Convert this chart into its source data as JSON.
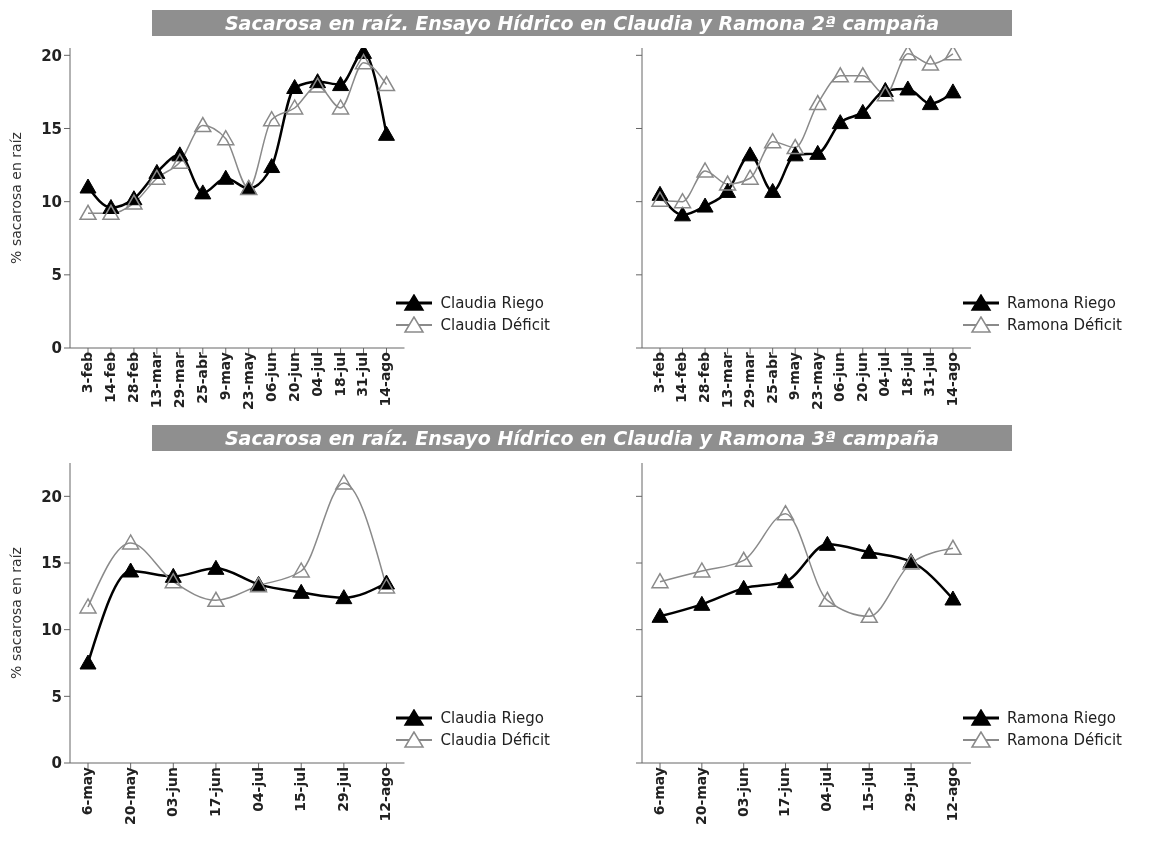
{
  "chart_data": [
    {
      "type": "line",
      "title": "Sacarosa en raíz. Ensayo Hídrico en Claudia y Ramona 2ª campaña",
      "ylabel": "% sacarosa en raíz",
      "categories": [
        "3-feb",
        "14-feb",
        "28-feb",
        "13-mar",
        "29-mar",
        "25-abr",
        "9-may",
        "23-may",
        "06-jun",
        "20-jun",
        "04-jul",
        "18-jul",
        "31-jul",
        "14-ago"
      ],
      "ylim": [
        0,
        20.5
      ],
      "yticks": [
        0,
        5,
        10,
        15,
        20
      ],
      "marker": "triangle",
      "legend": "bottom right",
      "grid": false,
      "series": [
        {
          "name": "Claudia Riego",
          "color": "#000000",
          "values": [
            11.0,
            9.6,
            10.2,
            12.0,
            13.2,
            10.6,
            11.6,
            10.9,
            12.4,
            17.8,
            18.2,
            18.0,
            20.2,
            14.6
          ]
        },
        {
          "name": "Claudia Déficit",
          "color": "#8a8a8a",
          "values": [
            9.2,
            9.2,
            9.9,
            11.6,
            12.7,
            15.2,
            14.3,
            10.9,
            15.6,
            16.4,
            17.9,
            16.4,
            19.5,
            18.0
          ]
        }
      ]
    },
    {
      "type": "line",
      "categories": [
        "3-feb",
        "14-feb",
        "28-feb",
        "13-mar",
        "29-mar",
        "25-abr",
        "9-may",
        "23-may",
        "06-jun",
        "20-jun",
        "04-jul",
        "18-jul",
        "31-jul",
        "14-ago"
      ],
      "ylim": [
        0,
        20.5
      ],
      "yticks": [
        0,
        5,
        10,
        15,
        20
      ],
      "tick_labels": "x",
      "marker": "triangle",
      "legend": "bottom right",
      "grid": false,
      "series": [
        {
          "name": "Ramona Riego",
          "color": "#000000",
          "values": [
            10.5,
            9.1,
            9.7,
            10.7,
            13.2,
            10.7,
            13.2,
            13.3,
            15.4,
            16.1,
            17.6,
            17.7,
            16.7,
            17.5
          ]
        },
        {
          "name": "Ramona Déficit",
          "color": "#8a8a8a",
          "values": [
            10.1,
            10.0,
            12.1,
            11.2,
            11.6,
            14.1,
            13.7,
            16.7,
            18.6,
            18.6,
            17.3,
            20.1,
            19.4,
            20.1
          ]
        }
      ]
    },
    {
      "type": "line",
      "title": "Sacarosa en raíz. Ensayo Hídrico en Claudia y Ramona 3ª campaña",
      "ylabel": "% sacarosa en raíz",
      "categories": [
        "6-may",
        "20-may",
        "03-jun",
        "17-jun",
        "04-jul",
        "15-jul",
        "29-jul",
        "12-ago"
      ],
      "ylim": [
        0,
        22.5
      ],
      "yticks": [
        0,
        5,
        10,
        15,
        20
      ],
      "marker": "triangle",
      "legend": "bottom right",
      "grid": false,
      "series": [
        {
          "name": "Claudia Riego",
          "color": "#000000",
          "values": [
            7.5,
            14.4,
            14.0,
            14.6,
            13.4,
            12.8,
            12.4,
            13.5
          ]
        },
        {
          "name": "Claudia Déficit",
          "color": "#8a8a8a",
          "values": [
            11.7,
            16.5,
            13.6,
            12.2,
            13.3,
            14.4,
            21.0,
            13.2
          ]
        }
      ]
    },
    {
      "type": "line",
      "categories": [
        "6-may",
        "20-may",
        "03-jun",
        "17-jun",
        "04-jul",
        "15-jul",
        "29-jul",
        "12-ago"
      ],
      "ylim": [
        0,
        22.5
      ],
      "yticks": [
        0,
        5,
        10,
        15,
        20
      ],
      "tick_labels": "x",
      "marker": "triangle",
      "legend": "bottom right",
      "grid": false,
      "series": [
        {
          "name": "Ramona Riego",
          "color": "#000000",
          "values": [
            11.0,
            11.9,
            13.1,
            13.6,
            16.4,
            15.8,
            15.1,
            12.3
          ]
        },
        {
          "name": "Ramona Déficit",
          "color": "#8a8a8a",
          "values": [
            13.6,
            14.4,
            15.2,
            18.7,
            12.2,
            11.0,
            15.0,
            16.1
          ]
        }
      ]
    }
  ]
}
